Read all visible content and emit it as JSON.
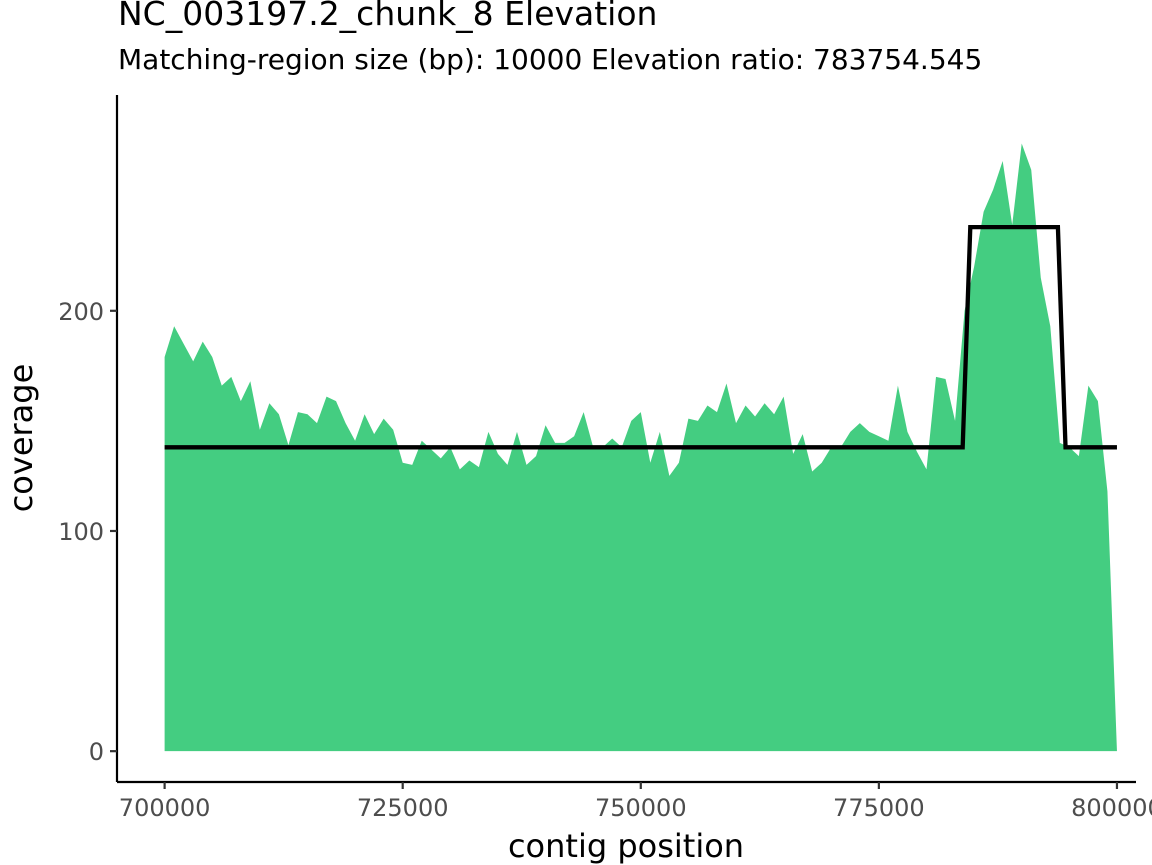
{
  "chart_data": {
    "type": "area",
    "title": "NC_003197.2_chunk_8 Elevation",
    "subtitle": "Matching-region size (bp): 10000 Elevation ratio: 783754.545",
    "xlabel": "contig position",
    "ylabel": "coverage",
    "xlim": [
      695000,
      802000
    ],
    "ylim": [
      -14,
      298
    ],
    "x_ticks": [
      700000,
      725000,
      750000,
      775000,
      800000
    ],
    "x_tick_labels": [
      "700000",
      "725000",
      "750000",
      "775000",
      "800000"
    ],
    "y_ticks": [
      0,
      100,
      200
    ],
    "y_tick_labels": [
      "0",
      "100",
      "200"
    ],
    "grid": false,
    "fill_color": "#44cd81",
    "line_color": "#000000",
    "coverage": {
      "x": [
        700000,
        701000,
        702000,
        703000,
        704000,
        705000,
        706000,
        707000,
        708000,
        709000,
        710000,
        711000,
        712000,
        713000,
        714000,
        715000,
        716000,
        717000,
        718000,
        719000,
        720000,
        721000,
        722000,
        723000,
        724000,
        725000,
        726000,
        727000,
        728000,
        729000,
        730000,
        731000,
        732000,
        733000,
        734000,
        735000,
        736000,
        737000,
        738000,
        739000,
        740000,
        741000,
        742000,
        743000,
        744000,
        745000,
        746000,
        747000,
        748000,
        749000,
        750000,
        751000,
        752000,
        753000,
        754000,
        755000,
        756000,
        757000,
        758000,
        759000,
        760000,
        761000,
        762000,
        763000,
        764000,
        765000,
        766000,
        767000,
        768000,
        769000,
        770000,
        771000,
        772000,
        773000,
        774000,
        775000,
        776000,
        777000,
        778000,
        779000,
        780000,
        781000,
        782000,
        783000,
        784000,
        785000,
        786000,
        787000,
        788000,
        789000,
        790000,
        791000,
        792000,
        793000,
        794000,
        795000,
        796000,
        797000,
        798000,
        799000,
        800000
      ],
      "y": [
        179,
        193,
        185,
        177,
        186,
        179,
        166,
        170,
        159,
        168,
        146,
        158,
        153,
        139,
        154,
        153,
        149,
        161,
        159,
        149,
        141,
        153,
        144,
        151,
        146,
        131,
        130,
        141,
        137,
        133,
        138,
        128,
        132,
        129,
        145,
        135,
        130,
        145,
        130,
        134,
        148,
        140,
        140,
        143,
        154,
        138,
        138,
        142,
        138,
        150,
        154,
        131,
        145,
        125,
        131,
        151,
        150,
        157,
        154,
        167,
        149,
        157,
        152,
        158,
        153,
        161,
        135,
        144,
        127,
        131,
        138,
        138,
        145,
        149,
        145,
        143,
        141,
        166,
        145,
        136,
        128,
        170,
        169,
        150,
        200,
        220,
        245,
        255,
        268,
        239,
        276,
        264,
        215,
        193,
        140,
        138,
        134,
        166,
        159,
        118,
        0
      ]
    },
    "elevation_line": {
      "x": [
        700000,
        783800,
        784600,
        793800,
        794600,
        800000
      ],
      "y": [
        138,
        138,
        238,
        238,
        138,
        138
      ]
    }
  }
}
